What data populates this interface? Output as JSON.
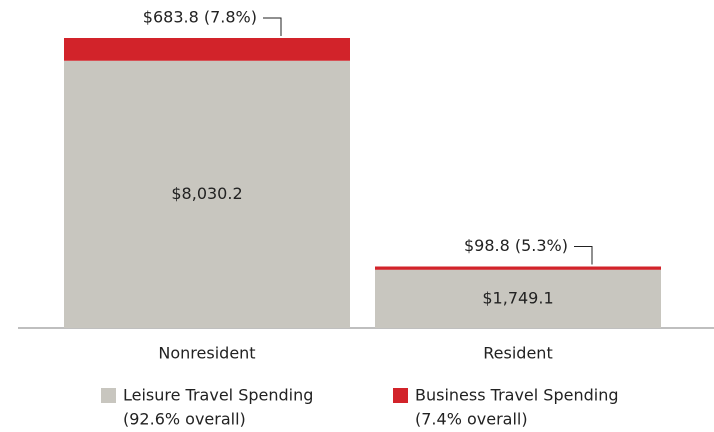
{
  "chart_data": {
    "type": "stacked-bar",
    "categories": [
      "Nonresident",
      "Resident"
    ],
    "series": [
      {
        "name": "Leisure Travel Spending",
        "overall": "(92.6% overall)",
        "color": "#c8c6bf",
        "values": [
          8030.2,
          1749.1
        ],
        "value_labels": [
          "$8,030.2",
          "$1,749.1"
        ]
      },
      {
        "name": "Business Travel Spending",
        "overall": "(7.4% overall)",
        "color": "#d2232a",
        "values": [
          683.8,
          98.8
        ],
        "value_labels": [
          "$683.8 (7.8%)",
          "$98.8 (5.3%)"
        ]
      }
    ]
  }
}
